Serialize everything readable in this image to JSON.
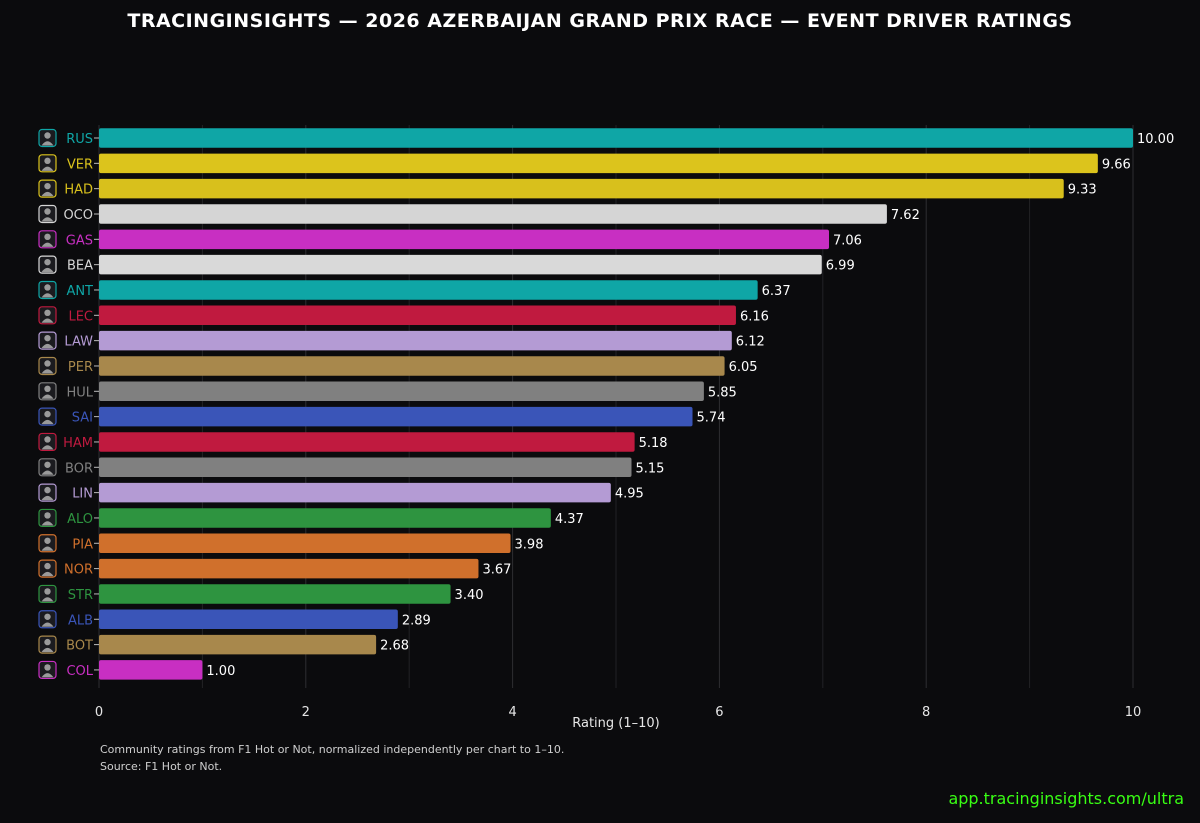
{
  "title": "TRACINGINSIGHTS — 2026 AZERBAIJAN GRAND PRIX RACE — EVENT DRIVER RATINGS",
  "footnote": {
    "line1": "Community ratings from F1 Hot or Not, normalized independently per chart to 1–10.",
    "line2": "Source: F1 Hot or Not."
  },
  "watermark": "app.tracinginsights.com/ultra",
  "chart_data": {
    "type": "bar",
    "orientation": "horizontal",
    "xlabel": "Rating (1–10)",
    "ylabel": "",
    "xlim": [
      0,
      10
    ],
    "xticks": [
      "0",
      "2",
      "4",
      "6",
      "8",
      "10"
    ],
    "grid": true,
    "categories": [
      "RUS",
      "VER",
      "HAD",
      "OCO",
      "GAS",
      "BEA",
      "ANT",
      "LEC",
      "LAW",
      "PER",
      "HUL",
      "SAI",
      "HAM",
      "BOR",
      "LIN",
      "ALO",
      "PIA",
      "NOR",
      "STR",
      "ALB",
      "BOT",
      "COL"
    ],
    "values": [
      10.0,
      9.66,
      9.33,
      7.62,
      7.06,
      6.99,
      6.37,
      6.16,
      6.12,
      6.05,
      5.85,
      5.74,
      5.18,
      5.15,
      4.95,
      4.37,
      3.98,
      3.67,
      3.4,
      2.89,
      2.68,
      1.0
    ],
    "labels": [
      "10.00",
      "9.66",
      "9.33",
      "7.62",
      "7.06",
      "6.99",
      "6.37",
      "6.16",
      "6.12",
      "6.05",
      "5.85",
      "5.74",
      "5.18",
      "5.15",
      "4.95",
      "4.37",
      "3.98",
      "3.67",
      "3.40",
      "2.89",
      "2.68",
      "1.00"
    ],
    "colors": [
      "#0fa6a6",
      "#dcc41c",
      "#d8c01c",
      "#d5d5d5",
      "#c82fc2",
      "#d9d9d9",
      "#0fa6a6",
      "#c01a3f",
      "#b49bd4",
      "#a8884c",
      "#808080",
      "#3a55b8",
      "#c01a3f",
      "#808080",
      "#b49bd4",
      "#2e9440",
      "#d0702c",
      "#d0702c",
      "#2e9440",
      "#3a55b8",
      "#a8884c",
      "#c82fc2"
    ]
  }
}
